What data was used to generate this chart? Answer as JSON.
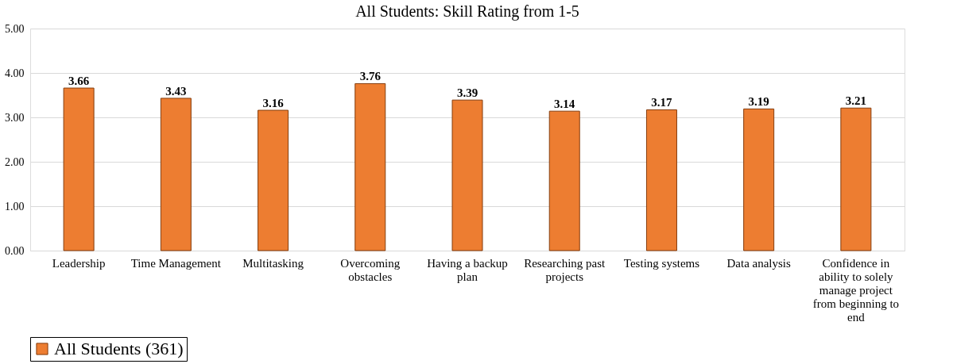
{
  "chart_data": {
    "type": "bar",
    "title": "All Students: Skill Rating from 1-5",
    "categories": [
      "Leadership",
      "Time Management",
      "Multitasking",
      "Overcoming obstacles",
      "Having a backup plan",
      "Researching past projects",
      "Testing systems",
      "Data analysis",
      "Confidence in ability to solely manage project from beginning to end"
    ],
    "series": [
      {
        "name": "All Students (361)",
        "color": "#ed7d31",
        "values": [
          3.66,
          3.43,
          3.16,
          3.76,
          3.39,
          3.14,
          3.17,
          3.19,
          3.21
        ]
      }
    ],
    "ylim": [
      0,
      5
    ],
    "yticks": [
      {
        "value": 0,
        "label": "0.00"
      },
      {
        "value": 1,
        "label": "1.00"
      },
      {
        "value": 2,
        "label": "2.00"
      },
      {
        "value": 3,
        "label": "3.00"
      },
      {
        "value": 4,
        "label": "4.00"
      },
      {
        "value": 5,
        "label": "5.00"
      }
    ],
    "grid": "y",
    "legend": "bottom",
    "data_labels": true
  }
}
